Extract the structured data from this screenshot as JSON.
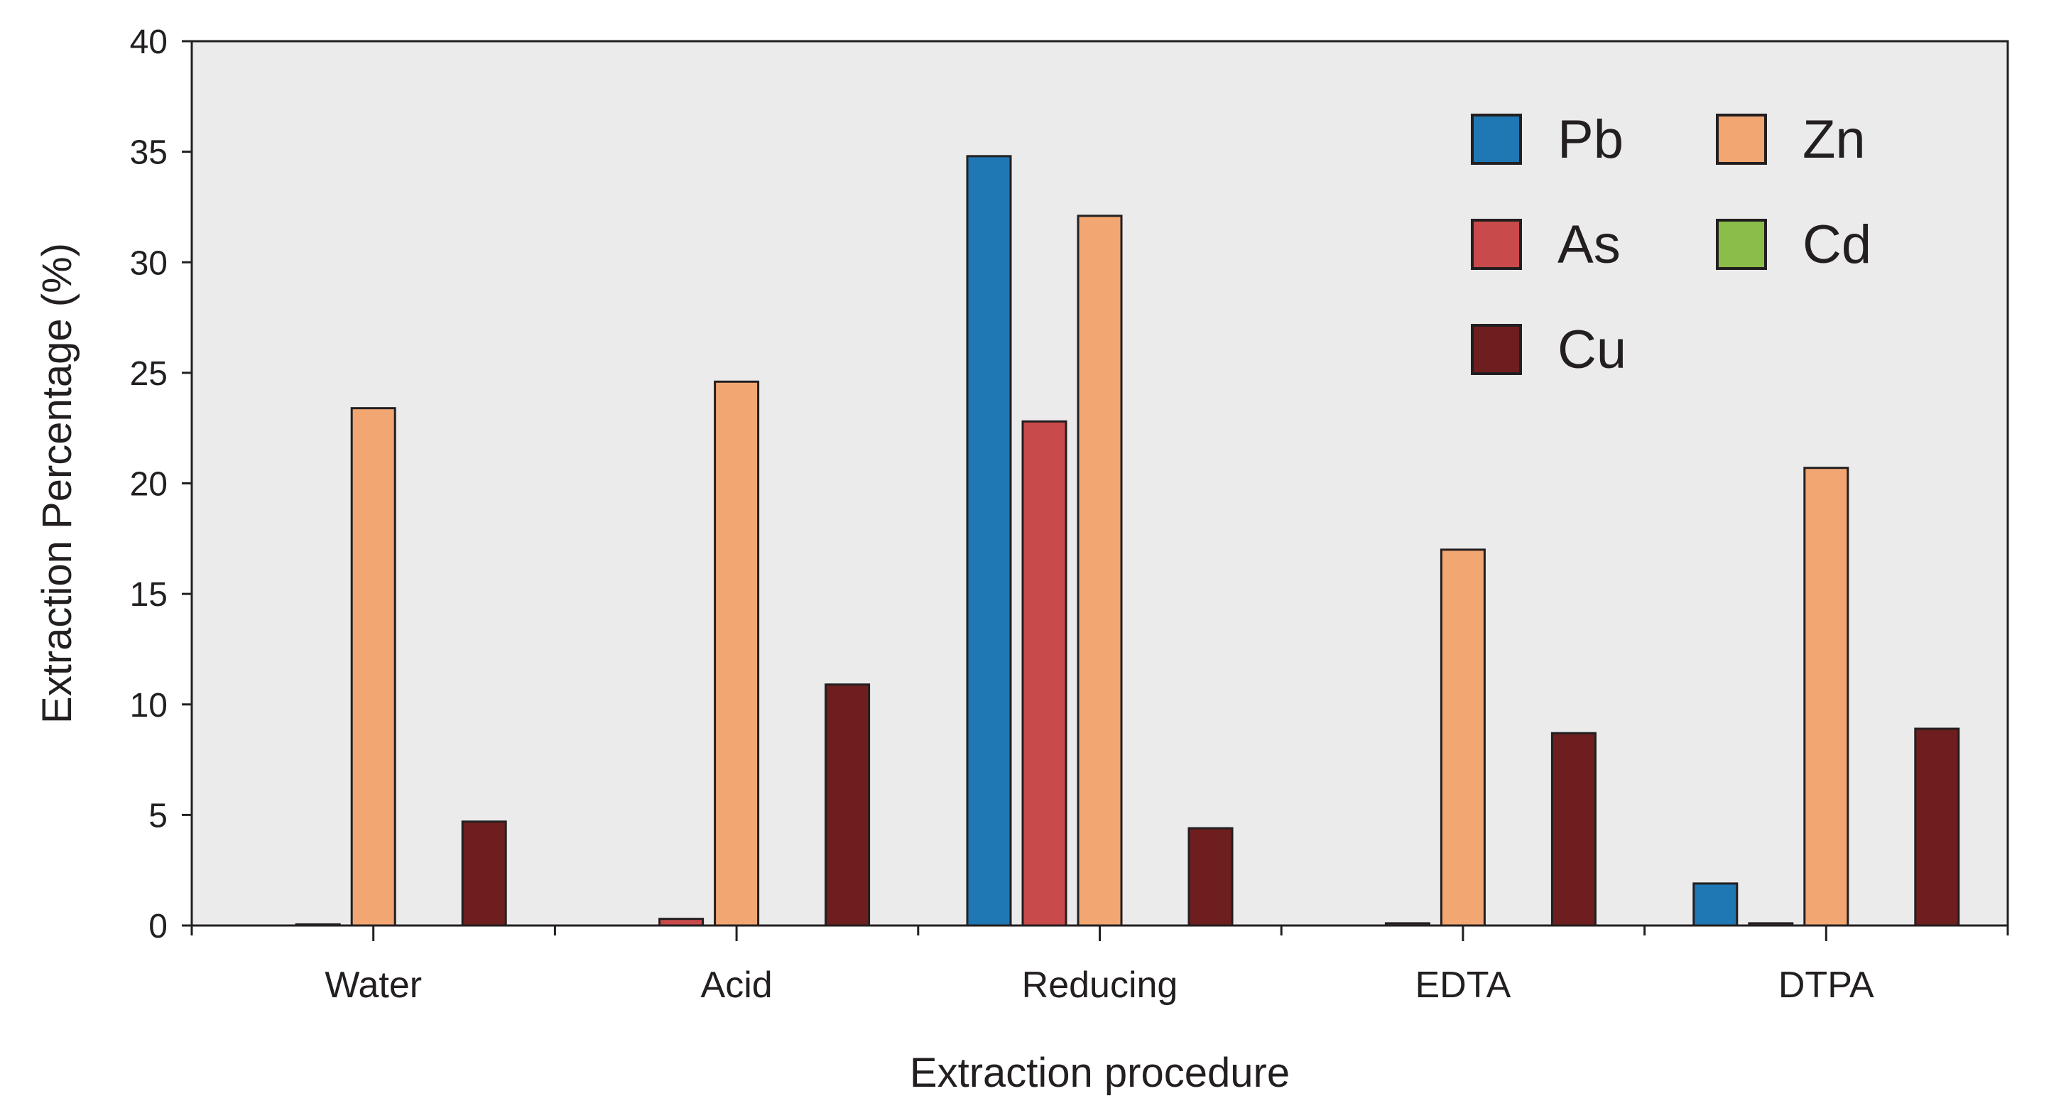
{
  "chart_data": {
    "type": "bar",
    "title": "",
    "xlabel": "Extraction procedure",
    "ylabel": "Extraction Percentage (%)",
    "ylim": [
      0,
      40
    ],
    "yticks": [
      0,
      5,
      10,
      15,
      20,
      25,
      30,
      35,
      40
    ],
    "categories": [
      "Water",
      "Acid",
      "Reducing",
      "EDTA",
      "DTPA"
    ],
    "series": [
      {
        "name": "Pb",
        "color": "#1f77b4",
        "values": [
          0.0,
          0.0,
          34.8,
          0.0,
          1.9
        ]
      },
      {
        "name": "As",
        "color": "#c94a4a",
        "values": [
          0.05,
          0.3,
          22.8,
          0.1,
          0.1
        ]
      },
      {
        "name": "Zn",
        "color": "#f2a672",
        "values": [
          23.4,
          24.6,
          32.1,
          17.0,
          20.7
        ]
      },
      {
        "name": "Cd",
        "color": "#8bbd4a",
        "values": [
          0.0,
          0.0,
          0.0,
          0.0,
          0.0
        ]
      },
      {
        "name": "Cu",
        "color": "#6e1e1e",
        "values": [
          4.7,
          10.9,
          4.4,
          8.7,
          8.9
        ]
      }
    ],
    "legend": {
      "placement": "top-right",
      "layout": [
        [
          "Pb",
          "Zn"
        ],
        [
          "As",
          "Cd"
        ],
        [
          "Cu"
        ]
      ]
    },
    "grid": false,
    "plot_background": "#ebebeb"
  }
}
